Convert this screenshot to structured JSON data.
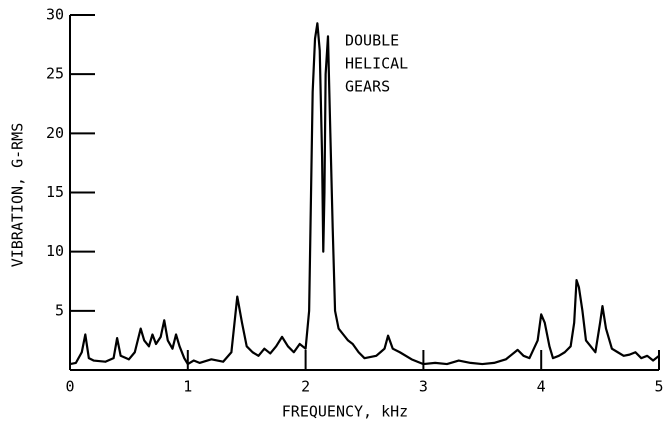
{
  "chart_data": {
    "type": "line",
    "xlabel": "FREQUENCY, kHz",
    "ylabel": "VIBRATION, G-RMS",
    "annotation": [
      "DOUBLE",
      "HELICAL",
      "GEARS"
    ],
    "xlim": [
      0,
      5
    ],
    "ylim": [
      0,
      30
    ],
    "xticks": [
      0,
      1,
      2,
      3,
      4,
      5
    ],
    "yticks": [
      5,
      10,
      15,
      20,
      25,
      30
    ],
    "series": [
      {
        "name": "vibration",
        "color": "#000000",
        "x": [
          0.0,
          0.05,
          0.1,
          0.13,
          0.16,
          0.2,
          0.3,
          0.37,
          0.4,
          0.43,
          0.5,
          0.55,
          0.6,
          0.63,
          0.67,
          0.7,
          0.73,
          0.77,
          0.8,
          0.83,
          0.87,
          0.9,
          0.93,
          0.97,
          1.0,
          1.05,
          1.1,
          1.2,
          1.3,
          1.37,
          1.42,
          1.46,
          1.5,
          1.55,
          1.6,
          1.65,
          1.7,
          1.75,
          1.8,
          1.85,
          1.9,
          1.95,
          2.0,
          2.03,
          2.06,
          2.08,
          2.1,
          2.12,
          2.14,
          2.15,
          2.16,
          2.17,
          2.19,
          2.21,
          2.23,
          2.25,
          2.28,
          2.32,
          2.36,
          2.4,
          2.45,
          2.5,
          2.6,
          2.67,
          2.7,
          2.74,
          2.8,
          2.9,
          3.0,
          3.1,
          3.2,
          3.3,
          3.4,
          3.5,
          3.6,
          3.7,
          3.8,
          3.85,
          3.9,
          3.97,
          4.0,
          4.03,
          4.07,
          4.1,
          4.15,
          4.2,
          4.25,
          4.28,
          4.3,
          4.32,
          4.35,
          4.38,
          4.42,
          4.46,
          4.5,
          4.52,
          4.55,
          4.6,
          4.65,
          4.7,
          4.75,
          4.8,
          4.85,
          4.9,
          4.95,
          5.0
        ],
        "values": [
          0.5,
          0.6,
          1.5,
          3.0,
          1.0,
          0.8,
          0.7,
          1.0,
          2.7,
          1.2,
          0.9,
          1.5,
          3.5,
          2.5,
          2.0,
          3.0,
          2.2,
          2.8,
          4.2,
          2.5,
          1.8,
          3.0,
          2.0,
          1.0,
          0.5,
          0.8,
          0.6,
          0.9,
          0.7,
          1.5,
          6.2,
          4.0,
          2.0,
          1.5,
          1.2,
          1.8,
          1.4,
          2.0,
          2.8,
          2.0,
          1.5,
          2.2,
          1.8,
          5.0,
          23.5,
          28.0,
          29.3,
          27.0,
          18.0,
          10.0,
          15.0,
          25.0,
          28.2,
          20.0,
          12.0,
          5.0,
          3.5,
          3.0,
          2.5,
          2.2,
          1.5,
          1.0,
          1.2,
          1.8,
          2.9,
          1.8,
          1.5,
          0.9,
          0.5,
          0.6,
          0.5,
          0.8,
          0.6,
          0.5,
          0.6,
          0.9,
          1.7,
          1.2,
          1.0,
          2.5,
          4.7,
          4.0,
          2.0,
          1.0,
          1.2,
          1.5,
          2.0,
          4.0,
          7.6,
          7.0,
          5.0,
          2.5,
          2.0,
          1.5,
          4.0,
          5.4,
          3.5,
          1.8,
          1.5,
          1.2,
          1.3,
          1.5,
          1.0,
          1.2,
          0.8,
          1.2
        ]
      }
    ]
  }
}
